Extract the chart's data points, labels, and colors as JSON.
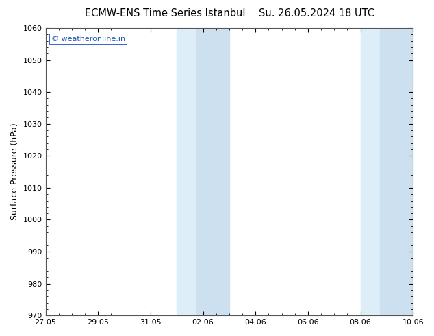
{
  "title_left": "ECMW-ENS Time Series Istanbul",
  "title_right": "Su. 26.05.2024 18 UTC",
  "ylabel": "Surface Pressure (hPa)",
  "ylim": [
    970,
    1060
  ],
  "yticks": [
    970,
    980,
    990,
    1000,
    1010,
    1020,
    1030,
    1040,
    1050,
    1060
  ],
  "background_color": "#ffffff",
  "plot_bg_color": "#ffffff",
  "stripe_color": "#daeaf5",
  "xtick_labels": [
    "27.05",
    "29.05",
    "31.05",
    "02.06",
    "04.06",
    "06.06",
    "08.06",
    "10.06"
  ],
  "xtick_positions": [
    0,
    2,
    4,
    6,
    8,
    10,
    12,
    14
  ],
  "shaded_regions": [
    {
      "start": 5.0,
      "end": 5.5
    },
    {
      "start": 5.5,
      "end": 7.0
    },
    {
      "start": 12.0,
      "end": 12.5
    },
    {
      "start": 12.5,
      "end": 14.0
    }
  ],
  "watermark_text": "© weatheronline.in",
  "watermark_color": "#1a55aa",
  "watermark_fontsize": 8,
  "title_fontsize": 10.5,
  "tick_fontsize": 8,
  "ylabel_fontsize": 9,
  "figure_bg": "#ffffff",
  "border_color": "#555555",
  "tick_color": "#000000"
}
